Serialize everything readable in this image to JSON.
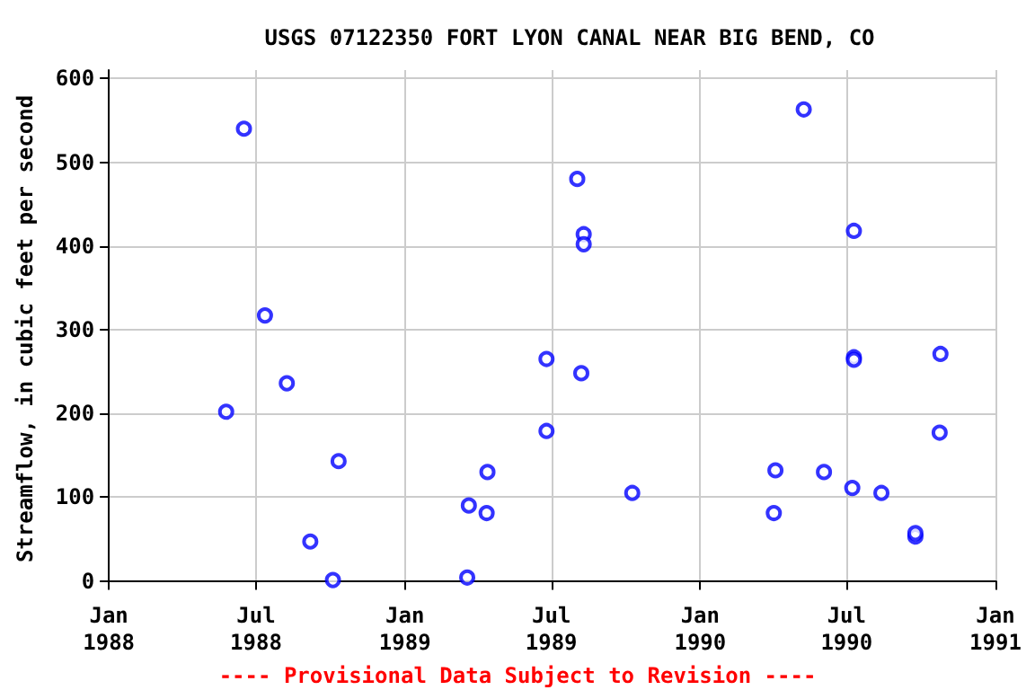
{
  "chart_data": {
    "type": "scatter",
    "title": "USGS 07122350 FORT LYON CANAL NEAR BIG BEND, CO",
    "ylabel": "Streamflow, in cubic feet per second",
    "annotations": [
      "---- Provisional Data Subject to Revision ----"
    ],
    "x": [
      "1988-05-25",
      "1988-06-16",
      "1988-07-12",
      "1988-08-08",
      "1988-09-06",
      "1988-10-04",
      "1988-10-11",
      "1989-03-21",
      "1989-03-19",
      "1989-04-12",
      "1989-04-13",
      "1989-06-25",
      "1989-06-25",
      "1989-08-02",
      "1989-08-10",
      "1989-08-10",
      "1989-08-07",
      "1989-10-09",
      "1990-05-09",
      "1990-04-04",
      "1990-04-02",
      "1990-06-03",
      "1990-07-10",
      "1990-07-10",
      "1990-07-10",
      "1990-07-08",
      "1990-08-13",
      "1990-09-24",
      "1990-09-24",
      "1990-10-25",
      "1990-10-24"
    ],
    "series": [
      {
        "color": "#0000ff",
        "values": [
          202,
          540,
          317,
          236,
          47,
          1,
          143,
          90,
          4,
          81,
          130,
          265,
          179,
          480,
          414,
          402,
          248,
          105,
          563,
          132,
          81,
          130,
          418,
          267,
          264,
          111,
          105,
          53,
          57,
          271,
          177
        ]
      }
    ],
    "xlim": [
      "1988-01-01",
      "1991-01-01"
    ],
    "xticks": [
      {
        "value": "1988-01-01",
        "label": "Jan\n1988"
      },
      {
        "value": "1988-07-01",
        "label": "Jul\n1988"
      },
      {
        "value": "1989-01-01",
        "label": "Jan\n1989"
      },
      {
        "value": "1989-07-01",
        "label": "Jul\n1989"
      },
      {
        "value": "1990-01-01",
        "label": "Jan\n1990"
      },
      {
        "value": "1990-07-01",
        "label": "Jul\n1990"
      },
      {
        "value": "1991-01-01",
        "label": "Jan\n1991"
      }
    ],
    "ylim": [
      -8,
      610
    ],
    "yticks": [
      0,
      100,
      200,
      300,
      400,
      500,
      600
    ],
    "grid": true,
    "marker": "circle"
  }
}
